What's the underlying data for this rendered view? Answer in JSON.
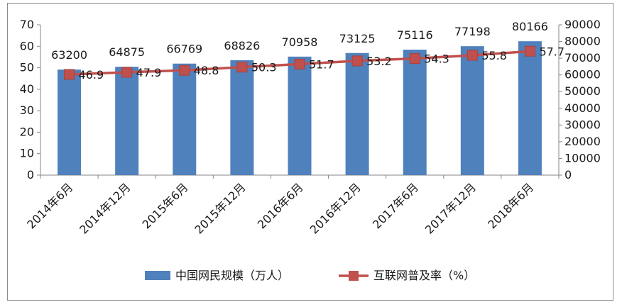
{
  "chart_data": {
    "type": "bar",
    "categories": [
      "2014年6月",
      "2014年12月",
      "2015年6月",
      "2015年12月",
      "2016年6月",
      "2016年12月",
      "2017年6月",
      "2017年12月",
      "2018年6月"
    ],
    "series": [
      {
        "name": "中国网民规模（万人）",
        "type": "bar",
        "axis": "right",
        "values": [
          63200,
          64875,
          66769,
          68826,
          70958,
          73125,
          75116,
          77198,
          80166
        ],
        "color": "#4f81bd"
      },
      {
        "name": "互联网普及率（%）",
        "type": "line",
        "axis": "left",
        "values": [
          46.9,
          47.9,
          48.8,
          50.3,
          51.7,
          53.2,
          54.3,
          55.8,
          57.7
        ],
        "color": "#c0504d"
      }
    ],
    "ylim_left": [
      0,
      70
    ],
    "yticks_left": [
      0,
      10,
      20,
      30,
      40,
      50,
      60,
      70
    ],
    "ylim_right": [
      0,
      90000
    ],
    "yticks_right": [
      0,
      10000,
      20000,
      30000,
      40000,
      50000,
      60000,
      70000,
      80000,
      90000
    ],
    "grid": false,
    "legend_position": "bottom"
  }
}
